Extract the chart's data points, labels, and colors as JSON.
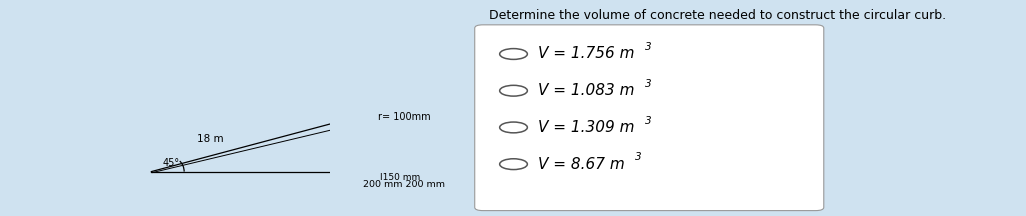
{
  "bg_color": "#cfe2f0",
  "panel_left_bg": "#ffffff",
  "panel_right_bg": "#f0f0f0",
  "question_text": "Determine the volume of concrete needed to construct the circular curb.",
  "options": [
    {
      "main": "V = 1.756 m",
      "sup": "3"
    },
    {
      "main": "V = 1.083 m",
      "sup": "3"
    },
    {
      "main": "V = 1.309 m",
      "sup": "3"
    },
    {
      "main": "V = 8.67 m",
      "sup": "3"
    }
  ],
  "angle_label": "45°",
  "radius_label": "18 m",
  "r_label": "r= 100mm",
  "height_label": "150 mm",
  "width1_label": "200 mm",
  "width2_label": "200 mm",
  "curb_fill": "#555555",
  "curb_edge": "#222222",
  "line_color": "#000000",
  "text_color": "#000000",
  "left_panel_border": "#aaaaaa",
  "right_panel_border": "#aaaaaa"
}
